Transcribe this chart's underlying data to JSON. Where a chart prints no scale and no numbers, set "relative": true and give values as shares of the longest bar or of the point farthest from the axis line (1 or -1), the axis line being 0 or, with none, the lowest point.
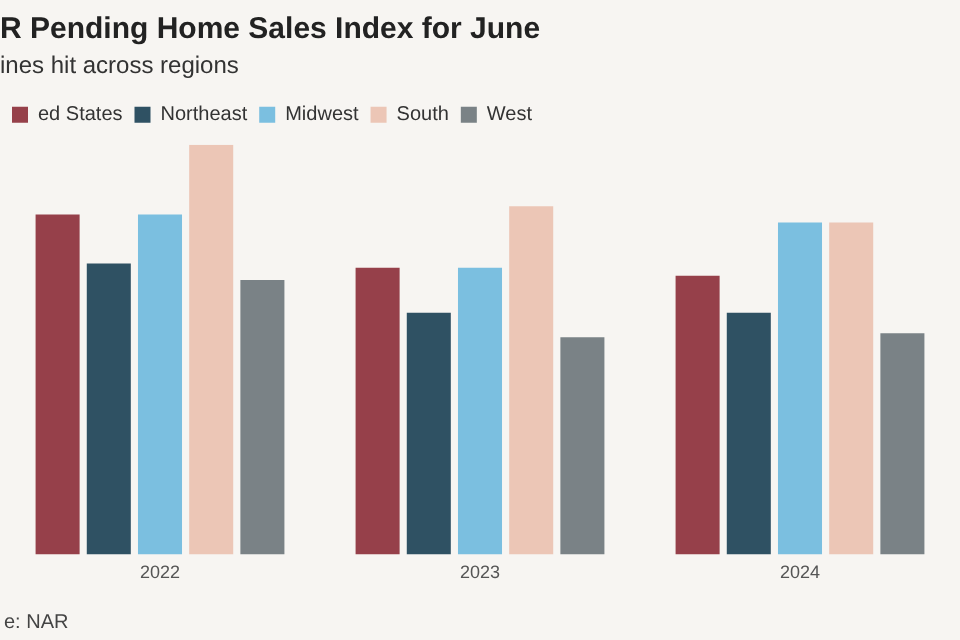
{
  "chart_data": {
    "type": "bar",
    "title": "R Pending Home Sales Index for June",
    "subtitle": "ines hit across regions",
    "relative": true,
    "legend": "top left",
    "grid": false,
    "categories": [
      "2022",
      "2023",
      "2024"
    ],
    "series": [
      {
        "name": "ed States",
        "color": "#96404a",
        "values": [
          0.83,
          0.7,
          0.68
        ]
      },
      {
        "name": "Northeast",
        "color": "#2f5163",
        "values": [
          0.71,
          0.59,
          0.59
        ]
      },
      {
        "name": "Midwest",
        "color": "#7bbfe0",
        "values": [
          0.83,
          0.7,
          0.81
        ]
      },
      {
        "name": "South",
        "color": "#ecc6b6",
        "values": [
          1,
          0.85,
          0.81
        ]
      },
      {
        "name": "West",
        "color": "#7a8286",
        "values": [
          0.67,
          0.53,
          0.54
        ]
      }
    ],
    "annotations": [
      "e: NAR"
    ]
  }
}
